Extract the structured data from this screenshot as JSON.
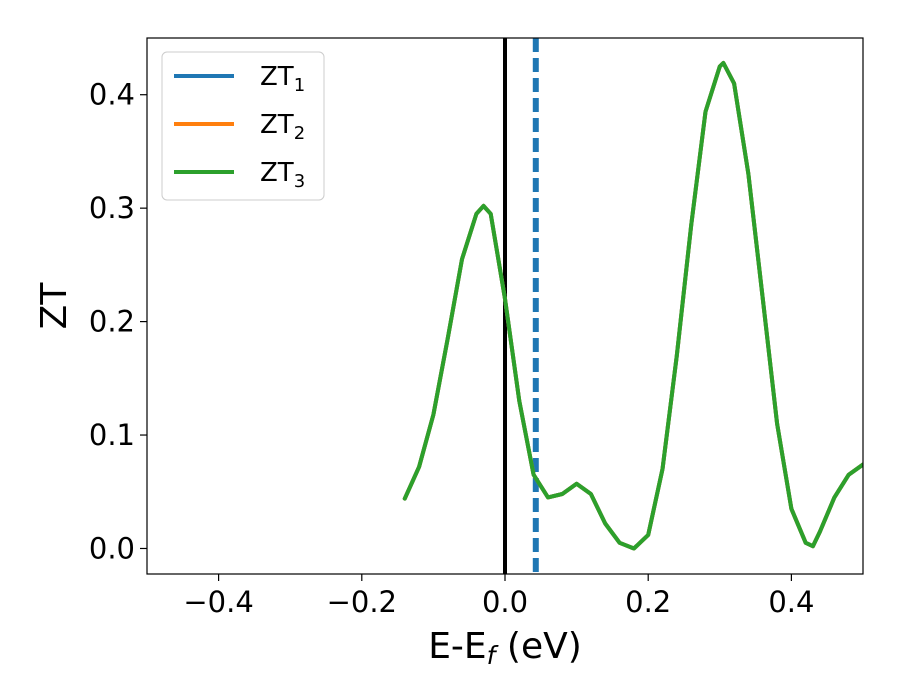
{
  "chart_data": {
    "type": "line",
    "title": "",
    "xlabel": {
      "main": "E-E",
      "sub": "f",
      "suffix": " (eV)"
    },
    "ylabel": "ZT",
    "xlim": [
      -0.5,
      0.5
    ],
    "ylim": [
      -0.0225,
      0.45
    ],
    "xticks": [
      -0.4,
      -0.2,
      0.0,
      0.2,
      0.4
    ],
    "xtick_labels": [
      "−0.4",
      "−0.2",
      "0.0",
      "0.2",
      "0.4"
    ],
    "yticks": [
      0.0,
      0.1,
      0.2,
      0.3,
      0.4
    ],
    "ytick_labels": [
      "0.0",
      "0.1",
      "0.2",
      "0.3",
      "0.4"
    ],
    "grid": false,
    "legend_position": "upper-left",
    "vlines": [
      {
        "x": 0.0,
        "color": "#000000",
        "style": "solid"
      },
      {
        "x": 0.043,
        "color": "#1f77b4",
        "style": "dashed"
      }
    ],
    "series": [
      {
        "name": "ZT",
        "sub": "1",
        "color": "#1f77b4",
        "x": [
          -0.14,
          -0.12,
          -0.1,
          -0.08,
          -0.06,
          -0.04,
          -0.03,
          -0.02,
          0.0,
          0.02,
          0.04,
          0.06,
          0.08,
          0.1,
          0.12,
          0.14,
          0.16,
          0.18,
          0.2,
          0.22,
          0.24,
          0.26,
          0.28,
          0.3,
          0.305,
          0.32,
          0.34,
          0.36,
          0.38,
          0.4,
          0.42,
          0.43,
          0.44,
          0.46,
          0.48,
          0.5
        ],
        "y": [
          0.044,
          0.072,
          0.118,
          0.185,
          0.255,
          0.295,
          0.302,
          0.295,
          0.22,
          0.13,
          0.065,
          0.045,
          0.048,
          0.057,
          0.048,
          0.022,
          0.005,
          0.0,
          0.012,
          0.07,
          0.17,
          0.285,
          0.385,
          0.425,
          0.428,
          0.41,
          0.33,
          0.22,
          0.11,
          0.035,
          0.005,
          0.002,
          0.015,
          0.045,
          0.065,
          0.074
        ]
      },
      {
        "name": "ZT",
        "sub": "2",
        "color": "#ff7f0e",
        "x": [
          -0.14,
          -0.12,
          -0.1,
          -0.08,
          -0.06,
          -0.04,
          -0.03,
          -0.02,
          0.0,
          0.02,
          0.04,
          0.06,
          0.08,
          0.1,
          0.12,
          0.14,
          0.16,
          0.18,
          0.2,
          0.22,
          0.24,
          0.26,
          0.28,
          0.3,
          0.305,
          0.32,
          0.34,
          0.36,
          0.38,
          0.4,
          0.42,
          0.43,
          0.44,
          0.46,
          0.48,
          0.5
        ],
        "y": [
          0.044,
          0.072,
          0.118,
          0.185,
          0.255,
          0.295,
          0.302,
          0.295,
          0.22,
          0.13,
          0.065,
          0.045,
          0.048,
          0.057,
          0.048,
          0.022,
          0.005,
          0.0,
          0.012,
          0.07,
          0.17,
          0.285,
          0.385,
          0.425,
          0.428,
          0.41,
          0.33,
          0.22,
          0.11,
          0.035,
          0.005,
          0.002,
          0.015,
          0.045,
          0.065,
          0.074
        ]
      },
      {
        "name": "ZT",
        "sub": "3",
        "color": "#2ca02c",
        "x": [
          -0.14,
          -0.12,
          -0.1,
          -0.08,
          -0.06,
          -0.04,
          -0.03,
          -0.02,
          0.0,
          0.02,
          0.04,
          0.06,
          0.08,
          0.1,
          0.12,
          0.14,
          0.16,
          0.18,
          0.2,
          0.22,
          0.24,
          0.26,
          0.28,
          0.3,
          0.305,
          0.32,
          0.34,
          0.36,
          0.38,
          0.4,
          0.42,
          0.43,
          0.44,
          0.46,
          0.48,
          0.5
        ],
        "y": [
          0.044,
          0.072,
          0.118,
          0.185,
          0.255,
          0.295,
          0.302,
          0.295,
          0.22,
          0.13,
          0.065,
          0.045,
          0.048,
          0.057,
          0.048,
          0.022,
          0.005,
          0.0,
          0.012,
          0.07,
          0.17,
          0.285,
          0.385,
          0.425,
          0.428,
          0.41,
          0.33,
          0.22,
          0.11,
          0.035,
          0.005,
          0.002,
          0.015,
          0.045,
          0.065,
          0.074
        ]
      }
    ]
  }
}
